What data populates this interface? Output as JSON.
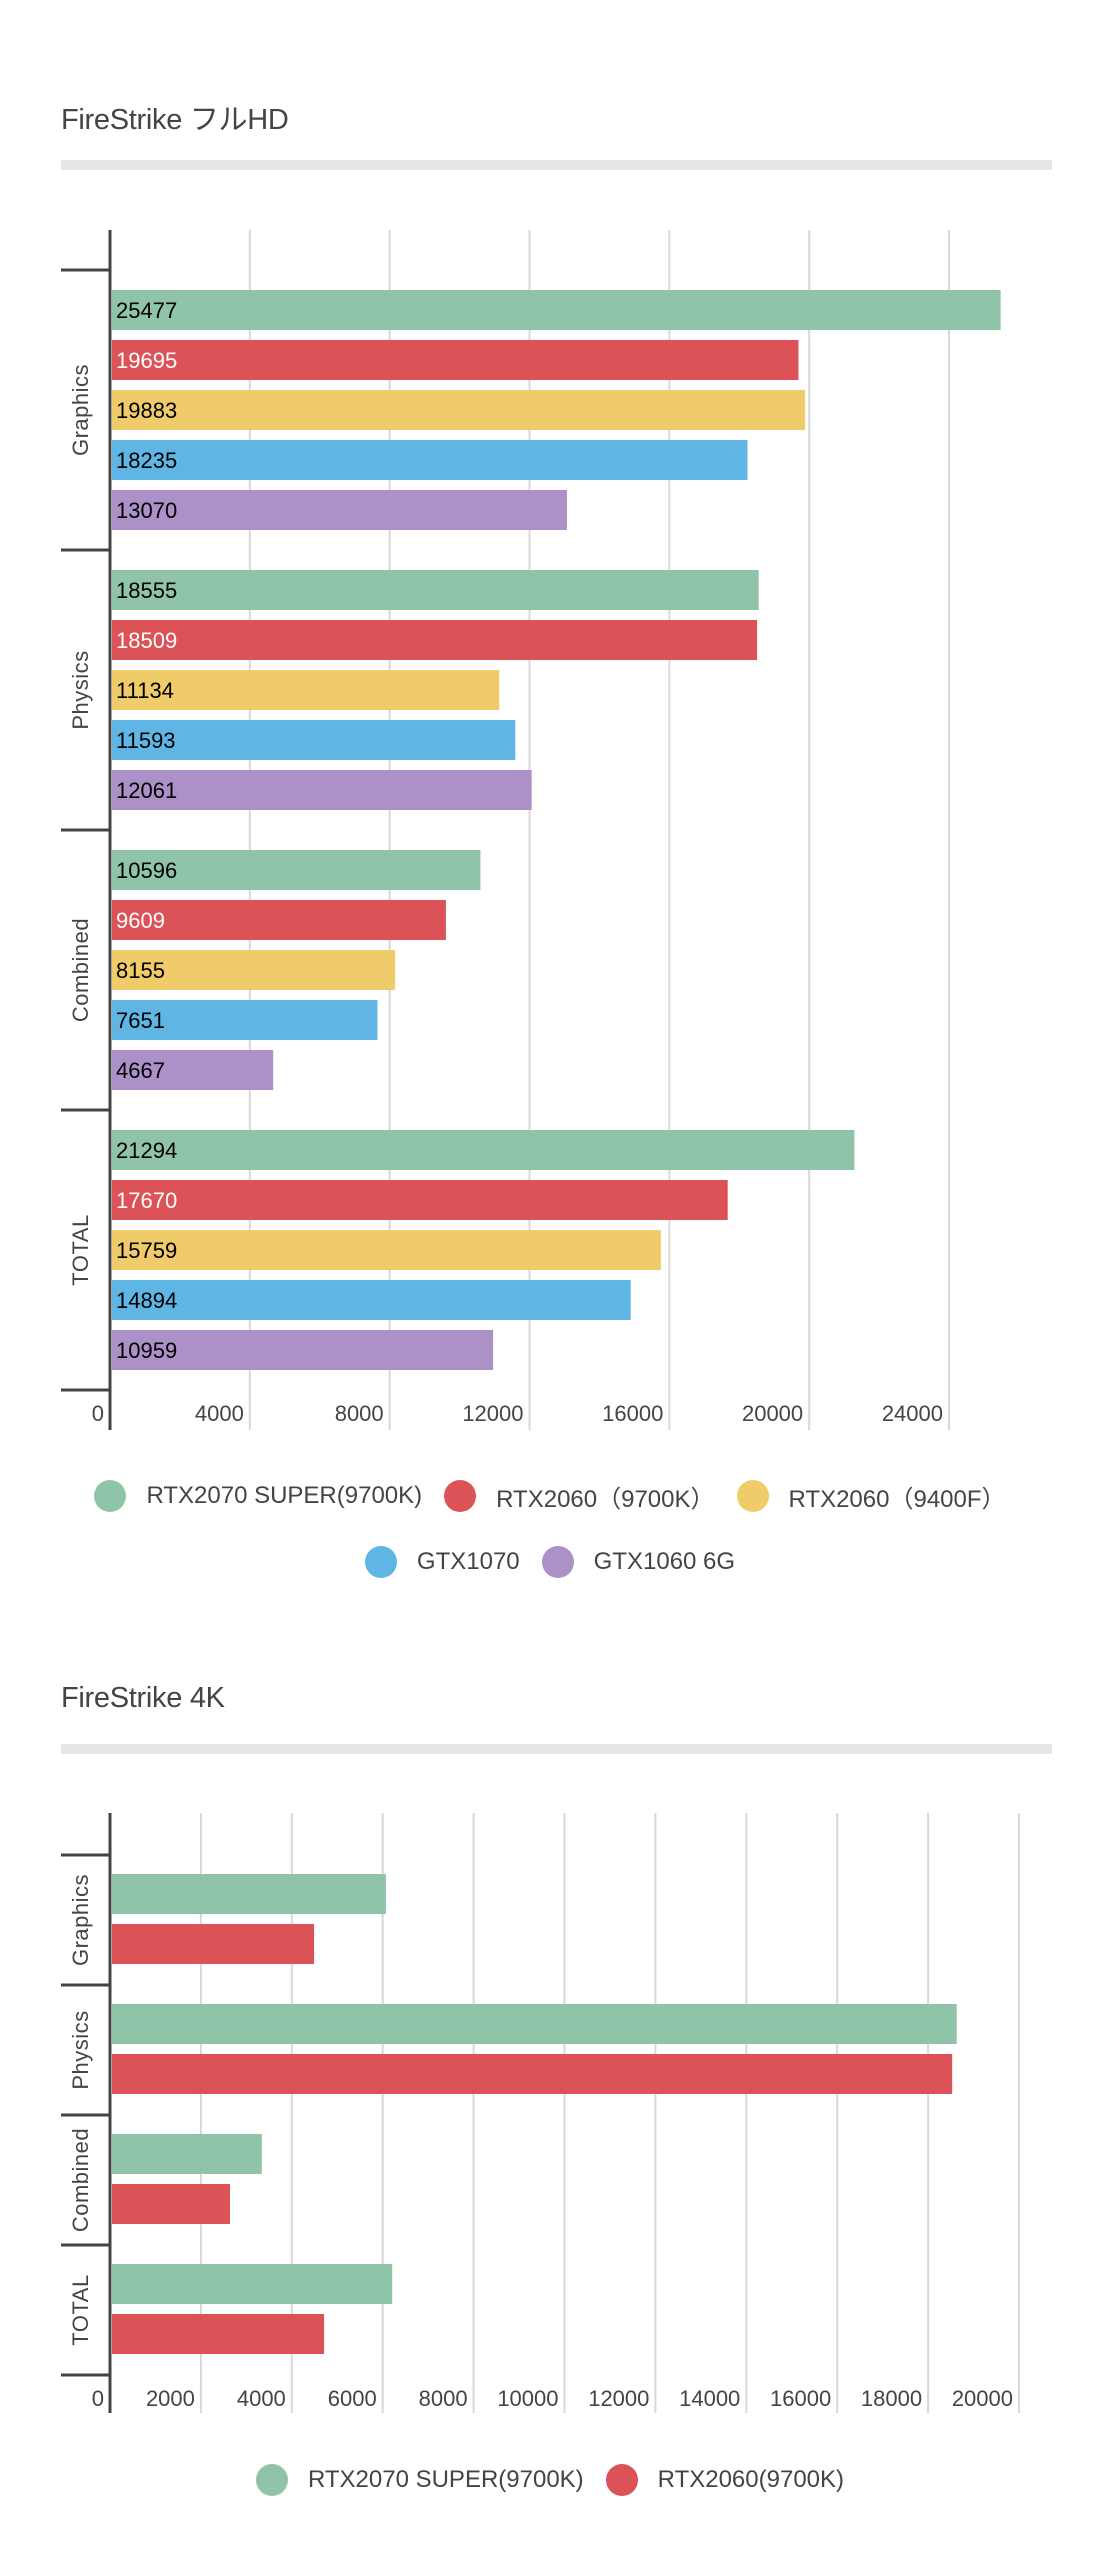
{
  "chart_data": [
    {
      "type": "bar",
      "orientation": "horizontal",
      "title": "FireStrike フルHD",
      "categories": [
        "Graphics",
        "Physics",
        "Combined",
        "TOTAL"
      ],
      "series": [
        {
          "name": "RTX2070 SUPER(9700K)",
          "color": "#8fc4a9",
          "label_color": "#000000",
          "values": [
            25477,
            18555,
            10596,
            21294
          ]
        },
        {
          "name": "RTX2060（9700K）",
          "color": "#dc5357",
          "label_color": "#ffffff",
          "values": [
            19695,
            18509,
            9609,
            17670
          ]
        },
        {
          "name": "RTX2060（9400F）",
          "color": "#efcb6a",
          "label_color": "#000000",
          "values": [
            19883,
            11134,
            8155,
            15759
          ]
        },
        {
          "name": "GTX1070",
          "color": "#5fb6e4",
          "label_color": "#000000",
          "values": [
            18235,
            11593,
            7651,
            14894
          ]
        },
        {
          "name": "GTX1060 6G",
          "color": "#ab91c7",
          "label_color": "#000000",
          "values": [
            13070,
            12061,
            4667,
            10959
          ]
        }
      ],
      "data_labels": true,
      "xticks": [
        "0",
        "4000",
        "8000",
        "12000",
        "16000",
        "20000",
        "24000"
      ],
      "xtick_values": [
        0,
        4000,
        8000,
        12000,
        16000,
        20000,
        24000
      ],
      "xlim": [
        0,
        24000
      ],
      "xlabel": "",
      "ylabel": "",
      "grid": "vertical",
      "legend_position": "bottom",
      "legend_rows": [
        [
          0,
          1,
          2
        ],
        [
          3,
          4
        ]
      ]
    },
    {
      "type": "bar",
      "orientation": "horizontal",
      "title": "FireStrike 4K",
      "categories": [
        "Graphics",
        "Physics",
        "Combined",
        "TOTAL"
      ],
      "series": [
        {
          "name": "RTX2070 SUPER(9700K)",
          "color": "#8fc4a9",
          "values": [
            6070,
            18630,
            3340,
            6210
          ]
        },
        {
          "name": "RTX2060(9700K)",
          "color": "#dc5357",
          "values": [
            4490,
            18530,
            2640,
            4710
          ]
        }
      ],
      "data_labels": false,
      "xticks": [
        "0",
        "2000",
        "4000",
        "6000",
        "8000",
        "10000",
        "12000",
        "14000",
        "16000",
        "18000",
        "20000"
      ],
      "xtick_values": [
        0,
        2000,
        4000,
        6000,
        8000,
        10000,
        12000,
        14000,
        16000,
        18000,
        20000
      ],
      "xlim": [
        0,
        20000
      ],
      "xlabel": "",
      "ylabel": "",
      "grid": "vertical",
      "legend_position": "bottom",
      "legend_rows": [
        [
          0,
          1
        ]
      ]
    }
  ]
}
